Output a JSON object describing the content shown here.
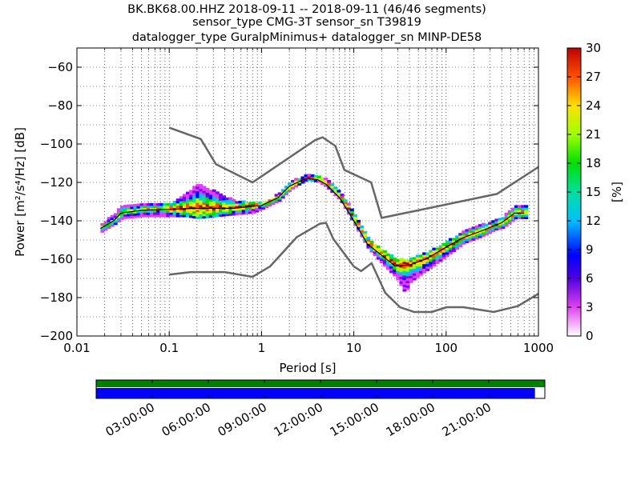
{
  "chart_data": {
    "type": "heatmap",
    "title_lines": [
      "BK.BK68.00.HHZ   2018-09-11 -- 2018-09-11  (46/46 segments)",
      "sensor_type CMG-3T sensor_sn T39819",
      "datalogger_type GuralpMinimus+ datalogger_sn MINP-DE58"
    ],
    "xlabel": "Period [s]",
    "ylabel": "Power [m²/s⁴/Hz] [dB]",
    "x_scale": "log",
    "xlim": [
      0.01,
      1000
    ],
    "ylim": [
      -200,
      -50
    ],
    "x_ticks": [
      {
        "value": 0.01,
        "label": "0.01"
      },
      {
        "value": 0.1,
        "label": "0.1"
      },
      {
        "value": 1,
        "label": "1"
      },
      {
        "value": 10,
        "label": "10"
      },
      {
        "value": 100,
        "label": "100"
      },
      {
        "value": 1000,
        "label": "1000"
      }
    ],
    "y_ticks": [
      {
        "value": -60,
        "label": "−60"
      },
      {
        "value": -80,
        "label": "−80"
      },
      {
        "value": -100,
        "label": "−100"
      },
      {
        "value": -120,
        "label": "−120"
      },
      {
        "value": -140,
        "label": "−140"
      },
      {
        "value": -160,
        "label": "−160"
      },
      {
        "value": -180,
        "label": "−180"
      },
      {
        "value": -200,
        "label": "−200"
      }
    ],
    "colorbar": {
      "label": "[%]",
      "range": [
        0,
        30
      ],
      "ticks": [
        "0",
        "3",
        "6",
        "9",
        "12",
        "15",
        "18",
        "21",
        "24",
        "27",
        "30"
      ]
    },
    "noise_model_high": [
      [
        0.1,
        -91.5
      ],
      [
        0.22,
        -97.4
      ],
      [
        0.32,
        -110.5
      ],
      [
        0.8,
        -120
      ],
      [
        3.8,
        -98
      ],
      [
        4.6,
        -96.5
      ],
      [
        6.3,
        -101
      ],
      [
        7.9,
        -113.5
      ],
      [
        15.4,
        -120
      ],
      [
        20,
        -138.5
      ],
      [
        354.8,
        -126
      ],
      [
        1000,
        -112
      ]
    ],
    "noise_model_low": [
      [
        0.1,
        -168
      ],
      [
        0.17,
        -166.7
      ],
      [
        0.4,
        -166.7
      ],
      [
        0.8,
        -169.2
      ],
      [
        1.24,
        -163.7
      ],
      [
        2.4,
        -148.6
      ],
      [
        4.3,
        -141.5
      ],
      [
        5,
        -141.1
      ],
      [
        6,
        -149.4
      ],
      [
        10,
        -163.8
      ],
      [
        12,
        -166.2
      ],
      [
        15.6,
        -162.1
      ],
      [
        21.9,
        -177.5
      ],
      [
        31.6,
        -185
      ],
      [
        45,
        -187.5
      ],
      [
        70,
        -187.5
      ],
      [
        101,
        -185
      ],
      [
        154,
        -185
      ],
      [
        328,
        -187.5
      ],
      [
        600,
        -184.4
      ],
      [
        1000,
        -178
      ]
    ],
    "psd_mode": [
      [
        0.018,
        -144
      ],
      [
        0.025,
        -140
      ],
      [
        0.03,
        -136
      ],
      [
        0.05,
        -134.5
      ],
      [
        0.1,
        -134
      ],
      [
        0.2,
        -133.5
      ],
      [
        0.5,
        -133.5
      ],
      [
        1,
        -132
      ],
      [
        1.5,
        -128
      ],
      [
        2,
        -122
      ],
      [
        3,
        -118
      ],
      [
        4,
        -118.5
      ],
      [
        5,
        -121
      ],
      [
        7,
        -128
      ],
      [
        10,
        -140
      ],
      [
        14,
        -152
      ],
      [
        20,
        -158
      ],
      [
        28,
        -163.5
      ],
      [
        40,
        -163
      ],
      [
        60,
        -160
      ],
      [
        90,
        -155
      ],
      [
        150,
        -149
      ],
      [
        250,
        -145
      ],
      [
        400,
        -141
      ],
      [
        550,
        -136
      ],
      [
        700,
        -136
      ]
    ],
    "psd_band": [
      [
        0.018,
        -146,
        -142
      ],
      [
        0.025,
        -142,
        -136
      ],
      [
        0.03,
        -139,
        -132
      ],
      [
        0.05,
        -138,
        -131
      ],
      [
        0.1,
        -138,
        -131
      ],
      [
        0.15,
        -138,
        -126
      ],
      [
        0.2,
        -139,
        -121
      ],
      [
        0.3,
        -138,
        -125
      ],
      [
        0.5,
        -137,
        -130
      ],
      [
        0.8,
        -136,
        -131
      ],
      [
        1,
        -134,
        -131
      ],
      [
        1.5,
        -130,
        -126
      ],
      [
        2,
        -124,
        -120
      ],
      [
        3,
        -119,
        -116
      ],
      [
        4,
        -120,
        -117
      ],
      [
        5,
        -123,
        -119
      ],
      [
        7,
        -130,
        -126
      ],
      [
        10,
        -143,
        -137
      ],
      [
        14,
        -155,
        -150
      ],
      [
        20,
        -163,
        -156
      ],
      [
        28,
        -170,
        -160
      ],
      [
        35,
        -178,
        -161
      ],
      [
        40,
        -172,
        -160
      ],
      [
        60,
        -166,
        -157
      ],
      [
        90,
        -160,
        -152
      ],
      [
        150,
        -152,
        -146
      ],
      [
        250,
        -148,
        -142
      ],
      [
        330,
        -145,
        -140
      ],
      [
        400,
        -144,
        -138
      ],
      [
        550,
        -139,
        -132
      ],
      [
        700,
        -139,
        -132
      ]
    ],
    "timeline": {
      "tick_labels": [
        "03:00:00",
        "06:00:00",
        "09:00:00",
        "12:00:00",
        "15:00:00",
        "18:00:00",
        "21:00:00"
      ],
      "tick_fractions": [
        0.125,
        0.25,
        0.375,
        0.5,
        0.625,
        0.75,
        0.875
      ],
      "data_coverage_fraction": 1.0,
      "psd_coverage_fraction": 0.978,
      "data_color": "#008000",
      "psd_color": "#0000ff"
    }
  }
}
